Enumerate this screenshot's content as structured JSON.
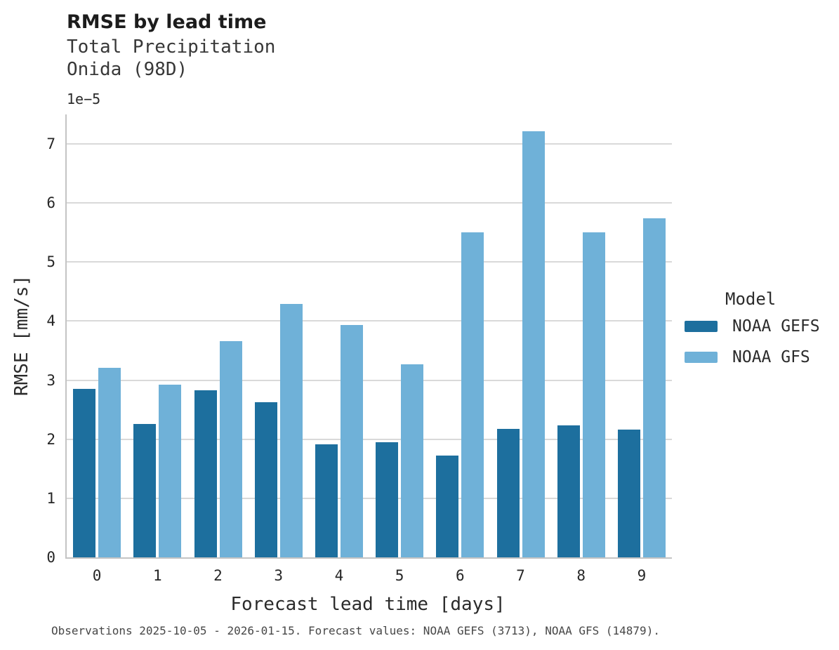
{
  "header": {
    "title": "RMSE by lead time",
    "subtitle_line1": "Total Precipitation",
    "subtitle_line2": "Onida (98D)"
  },
  "chart_data": {
    "type": "bar",
    "title": "RMSE by lead time",
    "subtitle": [
      "Total Precipitation",
      "Onida (98D)"
    ],
    "xlabel": "Forecast lead time [days]",
    "ylabel": "RMSE [mm/s]",
    "offset_label": "1e−5",
    "value_scale": "1e-5",
    "categories": [
      "0",
      "1",
      "2",
      "3",
      "4",
      "5",
      "6",
      "7",
      "8",
      "9"
    ],
    "series": [
      {
        "name": "NOAA GEFS",
        "color": "#1d6f9e",
        "values": [
          2.85,
          2.26,
          2.83,
          2.63,
          1.91,
          1.95,
          1.72,
          2.17,
          2.23,
          2.16
        ]
      },
      {
        "name": "NOAA GFS",
        "color": "#6fb1d8",
        "values": [
          3.21,
          2.93,
          3.66,
          4.29,
          3.94,
          3.27,
          5.5,
          7.22,
          5.5,
          5.74
        ]
      }
    ],
    "ylim": [
      0,
      7.5
    ],
    "yticks": [
      0,
      1,
      2,
      3,
      4,
      5,
      6,
      7
    ],
    "grid": true,
    "legend_position": "right"
  },
  "legend": {
    "title": "Model",
    "items": [
      {
        "label": "NOAA GEFS",
        "color": "#1d6f9e"
      },
      {
        "label": "NOAA GFS",
        "color": "#6fb1d8"
      }
    ]
  },
  "footer": {
    "caption": "Observations 2025-10-05 - 2026-01-15. Forecast values: NOAA GEFS (3713), NOAA GFS (14879)."
  },
  "colors": {
    "series_dark": "#1d6f9e",
    "series_light": "#6fb1d8",
    "gridline": "#d9d9d9",
    "axis_spine": "#c4c4c4",
    "text": "#2b2b2b"
  }
}
